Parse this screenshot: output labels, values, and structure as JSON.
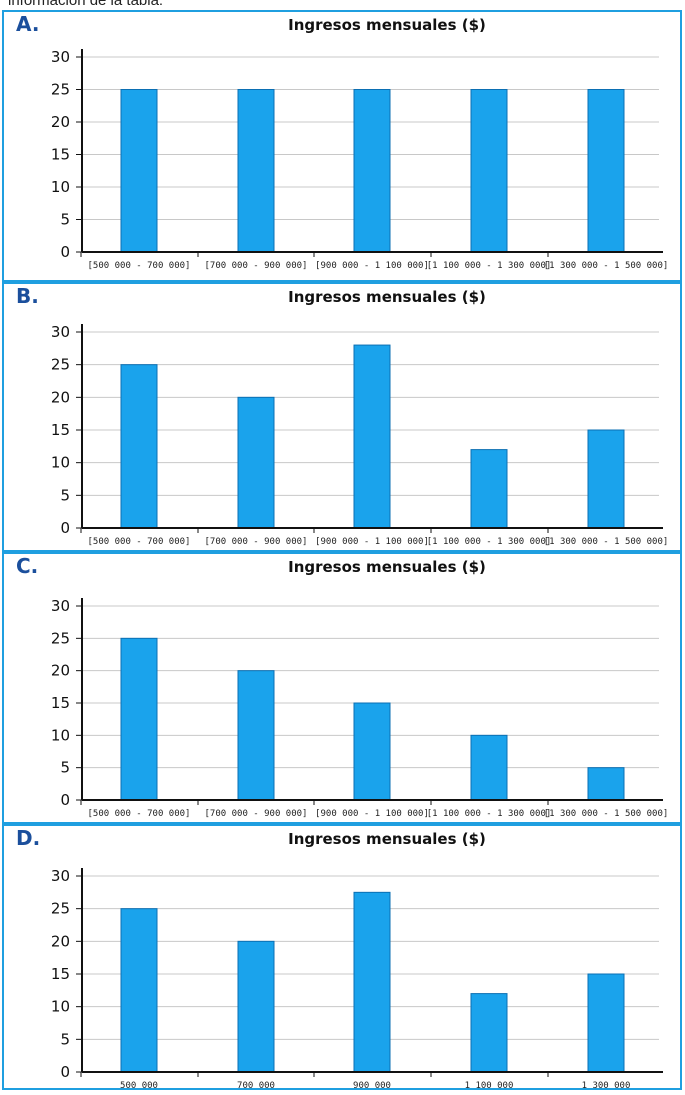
{
  "top_text": "información de la tabla:",
  "bar_color": "#1aa3ec",
  "bar_edge": "#0b6fb3",
  "grid_color": "#c8c8c8",
  "panel_border_color": "#1f9fe0",
  "letter_color": "#1b4f9c",
  "chart_data": [
    {
      "type": "bar",
      "panel_label": "A.",
      "title": "Ingresos mensuales ($)",
      "categories": [
        "[500 000 - 700 000]",
        "[700 000 - 900 000]",
        "[900 000 - 1 100 000]",
        "[1 100 000 - 1 300 000]",
        "[1 300 000 - 1 500 000]"
      ],
      "values": [
        25,
        25,
        25,
        25,
        25
      ],
      "yticks": [
        "0",
        "5",
        "10",
        "15",
        "20",
        "25",
        "30"
      ],
      "ylim": [
        0,
        30
      ],
      "grid": true
    },
    {
      "type": "bar",
      "panel_label": "B.",
      "title": "Ingresos mensuales ($)",
      "categories": [
        "[500 000 - 700 000]",
        "[700 000 - 900 000]",
        "[900 000 - 1 100 000]",
        "[1 100 000 - 1 300 000]",
        "[1 300 000 - 1 500 000]"
      ],
      "values": [
        25,
        20,
        28,
        12,
        15
      ],
      "yticks": [
        "0",
        "5",
        "10",
        "15",
        "20",
        "25",
        "30"
      ],
      "ylim": [
        0,
        30
      ],
      "grid": true
    },
    {
      "type": "bar",
      "panel_label": "C.",
      "title": "Ingresos mensuales ($)",
      "categories": [
        "[500 000 - 700 000]",
        "[700 000 - 900 000]",
        "[900 000 - 1 100 000]",
        "[1 100 000 - 1 300 000]",
        "[1 300 000 - 1 500 000]"
      ],
      "values": [
        25,
        20,
        15,
        10,
        5
      ],
      "yticks": [
        "0",
        "5",
        "10",
        "15",
        "20",
        "25",
        "30"
      ],
      "ylim": [
        0,
        30
      ],
      "grid": true
    },
    {
      "type": "bar",
      "panel_label": "D.",
      "title": "Ingresos mensuales ($)",
      "categories": [
        "500 000",
        "700 000",
        "900 000",
        "1 100 000",
        "1 300 000"
      ],
      "values": [
        25,
        20,
        27.5,
        12,
        15
      ],
      "yticks": [
        "0",
        "5",
        "10",
        "15",
        "20",
        "25",
        "30"
      ],
      "ylim": [
        0,
        30
      ],
      "grid": true
    }
  ]
}
